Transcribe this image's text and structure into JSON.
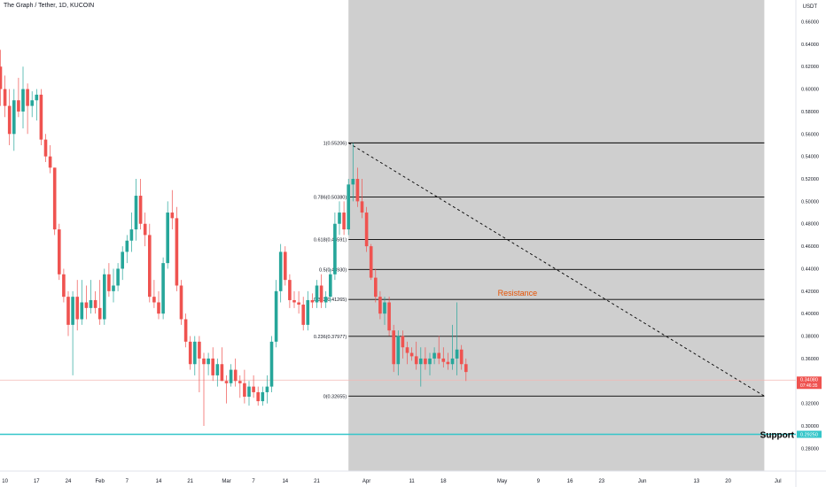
{
  "header": {
    "title": "The Graph / Tether, 1D, KUCOIN"
  },
  "colors": {
    "up": "#26a69a",
    "down": "#ef5350",
    "shade": "#cfcfcf",
    "support": "#35c6c9",
    "resistance_text": "#e65100",
    "price_tag": "#ef5350"
  },
  "chart_data": {
    "type": "candlestick",
    "title": "The Graph / Tether, 1D, KUCOIN",
    "currency_label": "USDT",
    "ylim": [
      0.27,
      0.68
    ],
    "y_ticks": [
      "0.28000",
      "0.30000",
      "0.32000",
      "0.34000",
      "0.36000",
      "0.38000",
      "0.40000",
      "0.42000",
      "0.44000",
      "0.46000",
      "0.48000",
      "0.50000",
      "0.52000",
      "0.54000",
      "0.56000",
      "0.58000",
      "0.60000",
      "0.62000",
      "0.64000",
      "0.66000"
    ],
    "x_ticks": [
      {
        "label": "10",
        "idx": 1
      },
      {
        "label": "17",
        "idx": 8
      },
      {
        "label": "24",
        "idx": 15
      },
      {
        "label": "Feb",
        "idx": 22
      },
      {
        "label": "7",
        "idx": 28
      },
      {
        "label": "14",
        "idx": 35
      },
      {
        "label": "21",
        "idx": 42
      },
      {
        "label": "Mar",
        "idx": 50
      },
      {
        "label": "7",
        "idx": 56
      },
      {
        "label": "14",
        "idx": 63
      },
      {
        "label": "21",
        "idx": 70
      },
      {
        "label": "Apr",
        "idx": 81
      },
      {
        "label": "11",
        "idx": 91
      },
      {
        "label": "18",
        "idx": 98
      },
      {
        "label": "May",
        "idx": 111
      },
      {
        "label": "9",
        "idx": 119
      },
      {
        "label": "16",
        "idx": 126
      },
      {
        "label": "23",
        "idx": 133
      },
      {
        "label": "Jun",
        "idx": 142
      },
      {
        "label": "13",
        "idx": 154
      },
      {
        "label": "20",
        "idx": 161
      },
      {
        "label": "Jul",
        "idx": 172
      }
    ],
    "candles": [
      [
        0.62,
        0.635,
        0.585,
        0.6
      ],
      [
        0.6,
        0.612,
        0.575,
        0.585
      ],
      [
        0.585,
        0.6,
        0.55,
        0.56
      ],
      [
        0.56,
        0.6,
        0.545,
        0.59
      ],
      [
        0.59,
        0.61,
        0.575,
        0.58
      ],
      [
        0.58,
        0.62,
        0.565,
        0.6
      ],
      [
        0.6,
        0.605,
        0.56,
        0.585
      ],
      [
        0.585,
        0.598,
        0.575,
        0.59
      ],
      [
        0.59,
        0.6,
        0.572,
        0.595
      ],
      [
        0.595,
        0.6,
        0.55,
        0.555
      ],
      [
        0.555,
        0.56,
        0.535,
        0.54
      ],
      [
        0.54,
        0.55,
        0.525,
        0.53
      ],
      [
        0.53,
        0.53,
        0.47,
        0.475
      ],
      [
        0.475,
        0.48,
        0.43,
        0.435
      ],
      [
        0.435,
        0.44,
        0.41,
        0.415
      ],
      [
        0.415,
        0.42,
        0.38,
        0.39
      ],
      [
        0.39,
        0.42,
        0.345,
        0.415
      ],
      [
        0.415,
        0.43,
        0.385,
        0.395
      ],
      [
        0.395,
        0.43,
        0.39,
        0.41
      ],
      [
        0.41,
        0.425,
        0.395,
        0.405
      ],
      [
        0.405,
        0.43,
        0.4,
        0.412
      ],
      [
        0.412,
        0.42,
        0.4,
        0.405
      ],
      [
        0.405,
        0.43,
        0.39,
        0.395
      ],
      [
        0.395,
        0.44,
        0.39,
        0.435
      ],
      [
        0.435,
        0.445,
        0.415,
        0.42
      ],
      [
        0.42,
        0.44,
        0.41,
        0.425
      ],
      [
        0.425,
        0.445,
        0.42,
        0.44
      ],
      [
        0.44,
        0.46,
        0.43,
        0.455
      ],
      [
        0.455,
        0.47,
        0.445,
        0.465
      ],
      [
        0.465,
        0.49,
        0.455,
        0.475
      ],
      [
        0.475,
        0.52,
        0.465,
        0.505
      ],
      [
        0.505,
        0.52,
        0.475,
        0.48
      ],
      [
        0.48,
        0.49,
        0.46,
        0.47
      ],
      [
        0.47,
        0.48,
        0.41,
        0.415
      ],
      [
        0.415,
        0.43,
        0.405,
        0.41
      ],
      [
        0.41,
        0.42,
        0.395,
        0.4
      ],
      [
        0.4,
        0.45,
        0.395,
        0.445
      ],
      [
        0.445,
        0.5,
        0.44,
        0.49
      ],
      [
        0.49,
        0.51,
        0.475,
        0.485
      ],
      [
        0.485,
        0.495,
        0.42,
        0.425
      ],
      [
        0.425,
        0.43,
        0.39,
        0.395
      ],
      [
        0.395,
        0.4,
        0.37,
        0.375
      ],
      [
        0.375,
        0.38,
        0.35,
        0.355
      ],
      [
        0.355,
        0.38,
        0.345,
        0.375
      ],
      [
        0.375,
        0.38,
        0.33,
        0.36
      ],
      [
        0.36,
        0.365,
        0.3,
        0.355
      ],
      [
        0.355,
        0.365,
        0.345,
        0.36
      ],
      [
        0.36,
        0.37,
        0.34,
        0.345
      ],
      [
        0.345,
        0.36,
        0.335,
        0.355
      ],
      [
        0.355,
        0.37,
        0.34,
        0.34
      ],
      [
        0.34,
        0.345,
        0.32,
        0.338
      ],
      [
        0.338,
        0.355,
        0.335,
        0.35
      ],
      [
        0.35,
        0.36,
        0.335,
        0.34
      ],
      [
        0.34,
        0.345,
        0.325,
        0.338
      ],
      [
        0.338,
        0.35,
        0.32,
        0.326
      ],
      [
        0.326,
        0.34,
        0.318,
        0.335
      ],
      [
        0.335,
        0.345,
        0.325,
        0.33
      ],
      [
        0.33,
        0.335,
        0.318,
        0.322
      ],
      [
        0.322,
        0.335,
        0.318,
        0.33
      ],
      [
        0.33,
        0.345,
        0.32,
        0.335
      ],
      [
        0.335,
        0.38,
        0.33,
        0.375
      ],
      [
        0.375,
        0.43,
        0.37,
        0.42
      ],
      [
        0.42,
        0.462,
        0.41,
        0.455
      ],
      [
        0.455,
        0.46,
        0.425,
        0.43
      ],
      [
        0.43,
        0.435,
        0.405,
        0.412
      ],
      [
        0.412,
        0.42,
        0.405,
        0.41
      ],
      [
        0.41,
        0.42,
        0.4,
        0.408
      ],
      [
        0.408,
        0.415,
        0.385,
        0.39
      ],
      [
        0.39,
        0.42,
        0.385,
        0.412
      ],
      [
        0.412,
        0.418,
        0.405,
        0.41
      ],
      [
        0.41,
        0.43,
        0.405,
        0.425
      ],
      [
        0.425,
        0.435,
        0.405,
        0.41
      ],
      [
        0.41,
        0.42,
        0.405,
        0.415
      ],
      [
        0.415,
        0.44,
        0.41,
        0.435
      ],
      [
        0.435,
        0.49,
        0.43,
        0.48
      ],
      [
        0.48,
        0.5,
        0.47,
        0.49
      ],
      [
        0.49,
        0.5,
        0.47,
        0.475
      ],
      [
        0.475,
        0.52,
        0.47,
        0.515
      ],
      [
        0.515,
        0.552,
        0.5,
        0.52
      ],
      [
        0.52,
        0.53,
        0.495,
        0.5
      ],
      [
        0.5,
        0.52,
        0.485,
        0.49
      ],
      [
        0.49,
        0.495,
        0.455,
        0.46
      ],
      [
        0.46,
        0.462,
        0.43,
        0.432
      ],
      [
        0.432,
        0.44,
        0.41,
        0.415
      ],
      [
        0.415,
        0.42,
        0.395,
        0.4
      ],
      [
        0.4,
        0.415,
        0.39,
        0.41
      ],
      [
        0.41,
        0.415,
        0.38,
        0.385
      ],
      [
        0.385,
        0.39,
        0.348,
        0.355
      ],
      [
        0.355,
        0.385,
        0.345,
        0.38
      ],
      [
        0.38,
        0.385,
        0.36,
        0.37
      ],
      [
        0.37,
        0.375,
        0.355,
        0.365
      ],
      [
        0.365,
        0.37,
        0.358,
        0.362
      ],
      [
        0.362,
        0.375,
        0.35,
        0.355
      ],
      [
        0.355,
        0.37,
        0.335,
        0.36
      ],
      [
        0.36,
        0.37,
        0.35,
        0.355
      ],
      [
        0.355,
        0.365,
        0.345,
        0.36
      ],
      [
        0.36,
        0.37,
        0.355,
        0.365
      ],
      [
        0.365,
        0.38,
        0.355,
        0.36
      ],
      [
        0.36,
        0.37,
        0.352,
        0.357
      ],
      [
        0.357,
        0.365,
        0.35,
        0.355
      ],
      [
        0.355,
        0.39,
        0.35,
        0.36
      ],
      [
        0.36,
        0.41,
        0.345,
        0.368
      ],
      [
        0.368,
        0.372,
        0.35,
        0.355
      ],
      [
        0.355,
        0.36,
        0.34,
        0.348
      ]
    ],
    "fibonacci": {
      "levels": [
        {
          "ratio": 1,
          "value": 0.55206,
          "label": "1(0.55206)"
        },
        {
          "ratio": 0.786,
          "value": 0.5038,
          "label": "0.786(0.50380)"
        },
        {
          "ratio": 0.618,
          "value": 0.46591,
          "label": "0.618(0.46591)"
        },
        {
          "ratio": 0.5,
          "value": 0.4393,
          "label": "0.5(0.43930)"
        },
        {
          "ratio": 0.382,
          "value": 0.41265,
          "label": "0.382(0.41265)"
        },
        {
          "ratio": 0.236,
          "value": 0.37977,
          "label": "0.236(0.37977)"
        },
        {
          "ratio": 0,
          "value": 0.32655,
          "label": "0(0.32655)"
        }
      ],
      "start_idx": 77,
      "end_idx": 169
    },
    "shaded_range": {
      "start_idx": 77,
      "end_idx": 169
    },
    "trendline": {
      "from": {
        "idx": 77,
        "value": 0.55206
      },
      "to": {
        "idx": 169,
        "value": 0.32655
      },
      "style": "dashed"
    },
    "annotations": [
      {
        "text": "Resistance",
        "idx": 111,
        "value": 0.41265
      },
      {
        "text": "Support",
        "value": 0.2925
      }
    ],
    "horizontal_lines": [
      {
        "name": "support",
        "value": 0.2925
      },
      {
        "name": "last-price",
        "value": 0.3408
      }
    ],
    "price_labels": {
      "last_price": "0.34080",
      "countdown": "07:46:35",
      "support": "0.29250"
    }
  }
}
